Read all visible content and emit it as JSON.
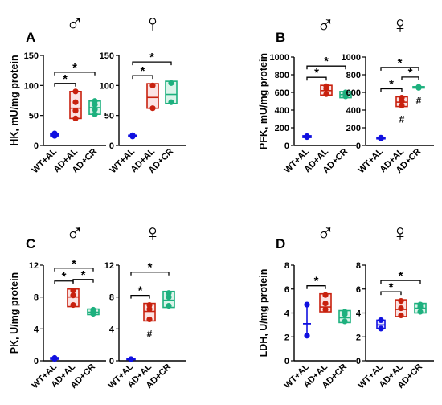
{
  "chart_data": [
    {
      "panel": "A",
      "type": "box",
      "ylabel": "HK, mU/mg protein",
      "ylim": [
        0,
        150
      ],
      "yticks": [
        0,
        50,
        100,
        150
      ],
      "groups": [
        {
          "sex": "♂",
          "categories": [
            "WT+AL",
            "AD+AL",
            "AD+CR"
          ],
          "boxes": [
            {
              "q1": 16,
              "q3": 20,
              "median": 18,
              "points": [
                16,
                17,
                18,
                19,
                20
              ]
            },
            {
              "q1": 45,
              "q3": 90,
              "median": 62,
              "points": [
                45,
                58,
                72,
                90
              ]
            },
            {
              "q1": 52,
              "q3": 74,
              "median": 63,
              "points": [
                52,
                60,
                68,
                74
              ]
            }
          ],
          "brackets": [
            {
              "from": 0,
              "to": 1,
              "label": "*"
            },
            {
              "from": 0,
              "to": 2,
              "label": "*"
            }
          ],
          "marks": [
            "",
            "",
            ""
          ]
        },
        {
          "sex": "♀",
          "categories": [
            "WT+AL",
            "AD+AL",
            "AD+CR"
          ],
          "boxes": [
            {
              "q1": 15,
              "q3": 17,
              "median": 16,
              "points": [
                15,
                17
              ]
            },
            {
              "q1": 62,
              "q3": 103,
              "median": 80,
              "points": [
                62,
                100
              ]
            },
            {
              "q1": 70,
              "q3": 107,
              "median": 85,
              "points": [
                72,
                104
              ]
            }
          ],
          "brackets": [
            {
              "from": 0,
              "to": 1,
              "label": "*"
            },
            {
              "from": 0,
              "to": 2,
              "label": "*"
            }
          ],
          "marks": [
            "",
            "",
            ""
          ]
        }
      ]
    },
    {
      "panel": "B",
      "type": "box",
      "ylabel": "PFK, mU/mg protein",
      "ylim": [
        0,
        1000
      ],
      "yticks": [
        0,
        200,
        400,
        600,
        800,
        1000
      ],
      "groups": [
        {
          "sex": "♂",
          "categories": [
            "WT+AL",
            "AD+AL",
            "AD+CR"
          ],
          "boxes": [
            {
              "q1": 90,
              "q3": 110,
              "median": 100,
              "points": [
                95,
                105
              ]
            },
            {
              "q1": 570,
              "q3": 680,
              "median": 620,
              "points": [
                580,
                640,
                670
              ]
            },
            {
              "q1": 540,
              "q3": 610,
              "median": 575,
              "points": [
                555,
                585,
                600
              ]
            }
          ],
          "brackets": [
            {
              "from": 0,
              "to": 1,
              "label": "*"
            },
            {
              "from": 0,
              "to": 2,
              "label": "*"
            }
          ],
          "marks": [
            "",
            "",
            ""
          ]
        },
        {
          "sex": "♀",
          "categories": [
            "WT+AL",
            "AD+AL",
            "AD+CR"
          ],
          "boxes": [
            {
              "q1": 75,
              "q3": 90,
              "median": 82,
              "points": [
                78,
                88
              ]
            },
            {
              "q1": 440,
              "q3": 550,
              "median": 490,
              "points": [
                450,
                500,
                540
              ]
            },
            {
              "q1": 650,
              "q3": 665,
              "median": 658,
              "points": [
                652,
                662
              ]
            }
          ],
          "brackets": [
            {
              "from": 0,
              "to": 1,
              "label": "*"
            },
            {
              "from": 0,
              "to": 2,
              "label": "*"
            },
            {
              "from": 1,
              "to": 2,
              "label": "*"
            }
          ],
          "marks": [
            "",
            "#",
            "#"
          ]
        }
      ]
    },
    {
      "panel": "C",
      "type": "box",
      "ylabel": "PK, U/mg protein",
      "ylim": [
        0,
        12
      ],
      "yticks": [
        0,
        4,
        8,
        12
      ],
      "groups": [
        {
          "sex": "♂",
          "categories": [
            "WT+AL",
            "AD+AL",
            "AD+CR"
          ],
          "boxes": [
            {
              "q1": 0.2,
              "q3": 0.4,
              "median": 0.3,
              "points": [
                0.25,
                0.35
              ]
            },
            {
              "q1": 6.8,
              "q3": 9.0,
              "median": 8.0,
              "points": [
                7.0,
                8.2,
                8.8
              ]
            },
            {
              "q1": 5.8,
              "q3": 6.5,
              "median": 6.1,
              "points": [
                5.9,
                6.2,
                6.4
              ]
            }
          ],
          "brackets": [
            {
              "from": 0,
              "to": 1,
              "label": "*"
            },
            {
              "from": 1,
              "to": 2,
              "label": "*"
            },
            {
              "from": 0,
              "to": 2,
              "label": "*"
            }
          ],
          "marks": [
            "",
            "",
            ""
          ]
        },
        {
          "sex": "♀",
          "categories": [
            "WT+AL",
            "AD+AL",
            "AD+CR"
          ],
          "boxes": [
            {
              "q1": 0.15,
              "q3": 0.3,
              "median": 0.22,
              "points": [
                0.2
              ]
            },
            {
              "q1": 5.0,
              "q3": 7.2,
              "median": 6.2,
              "points": [
                5.2,
                6.5,
                7.0
              ]
            },
            {
              "q1": 6.7,
              "q3": 8.7,
              "median": 7.6,
              "points": [
                6.9,
                8.0,
                8.5
              ]
            }
          ],
          "brackets": [
            {
              "from": 0,
              "to": 1,
              "label": "*"
            },
            {
              "from": 0,
              "to": 2,
              "label": "*"
            }
          ],
          "marks": [
            "",
            "#",
            ""
          ]
        }
      ]
    },
    {
      "panel": "D",
      "type": "box",
      "ylabel": "LDH, U/mg protein",
      "ylim": [
        0,
        8
      ],
      "yticks": [
        0,
        2,
        4,
        6,
        8
      ],
      "groups": [
        {
          "sex": "♂",
          "categories": [
            "WT+AL",
            "AD+AL",
            "AD+CR"
          ],
          "boxes": [
            {
              "q1": 2.1,
              "q3": 4.7,
              "median": 3.1,
              "points": [
                2.1,
                4.7
              ],
              "whisker": true
            },
            {
              "q1": 4.1,
              "q3": 5.6,
              "median": 4.5,
              "points": [
                4.3,
                4.8,
                5.5
              ]
            },
            {
              "q1": 3.2,
              "q3": 4.2,
              "median": 3.6,
              "points": [
                3.3,
                3.9,
                4.1
              ]
            }
          ],
          "brackets": [
            {
              "from": 0,
              "to": 1,
              "label": "*"
            }
          ],
          "marks": [
            "",
            "",
            ""
          ]
        },
        {
          "sex": "♀",
          "categories": [
            "WT+AL",
            "AD+AL",
            "AD+CR"
          ],
          "boxes": [
            {
              "q1": 2.7,
              "q3": 3.4,
              "median": 3.0,
              "points": [
                2.7,
                3.4
              ]
            },
            {
              "q1": 3.7,
              "q3": 5.1,
              "median": 4.3,
              "points": [
                3.8,
                4.4,
                5.0
              ]
            },
            {
              "q1": 4.0,
              "q3": 4.8,
              "median": 4.4,
              "points": [
                4.1,
                4.5,
                4.7
              ]
            }
          ],
          "brackets": [
            {
              "from": 0,
              "to": 1,
              "label": "*"
            },
            {
              "from": 0,
              "to": 2,
              "label": "*"
            }
          ],
          "marks": [
            "",
            "",
            ""
          ]
        }
      ]
    }
  ],
  "colors": {
    "wt": "#1010e0",
    "ad_al": "#c8210e",
    "ad_cr": "#1db07e",
    "ad_al_fill": "#fbe3e3",
    "ad_cr_fill": "#dcf4ea",
    "wt_fill": "#e3e3ff"
  }
}
